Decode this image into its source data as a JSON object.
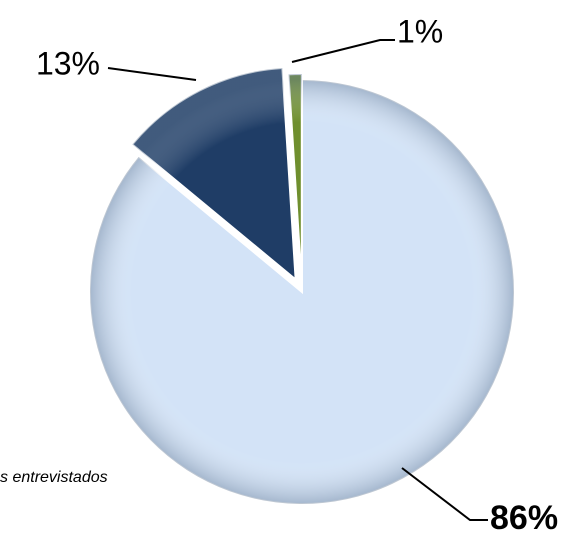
{
  "chart_data": {
    "type": "pie",
    "values": [
      86,
      13,
      1
    ],
    "value_labels": [
      "86%",
      "13%",
      "1%"
    ],
    "colors": [
      "#d3e3f7",
      "#1f3d66",
      "#6f8f2e"
    ],
    "annotation": "s entrevistados"
  }
}
